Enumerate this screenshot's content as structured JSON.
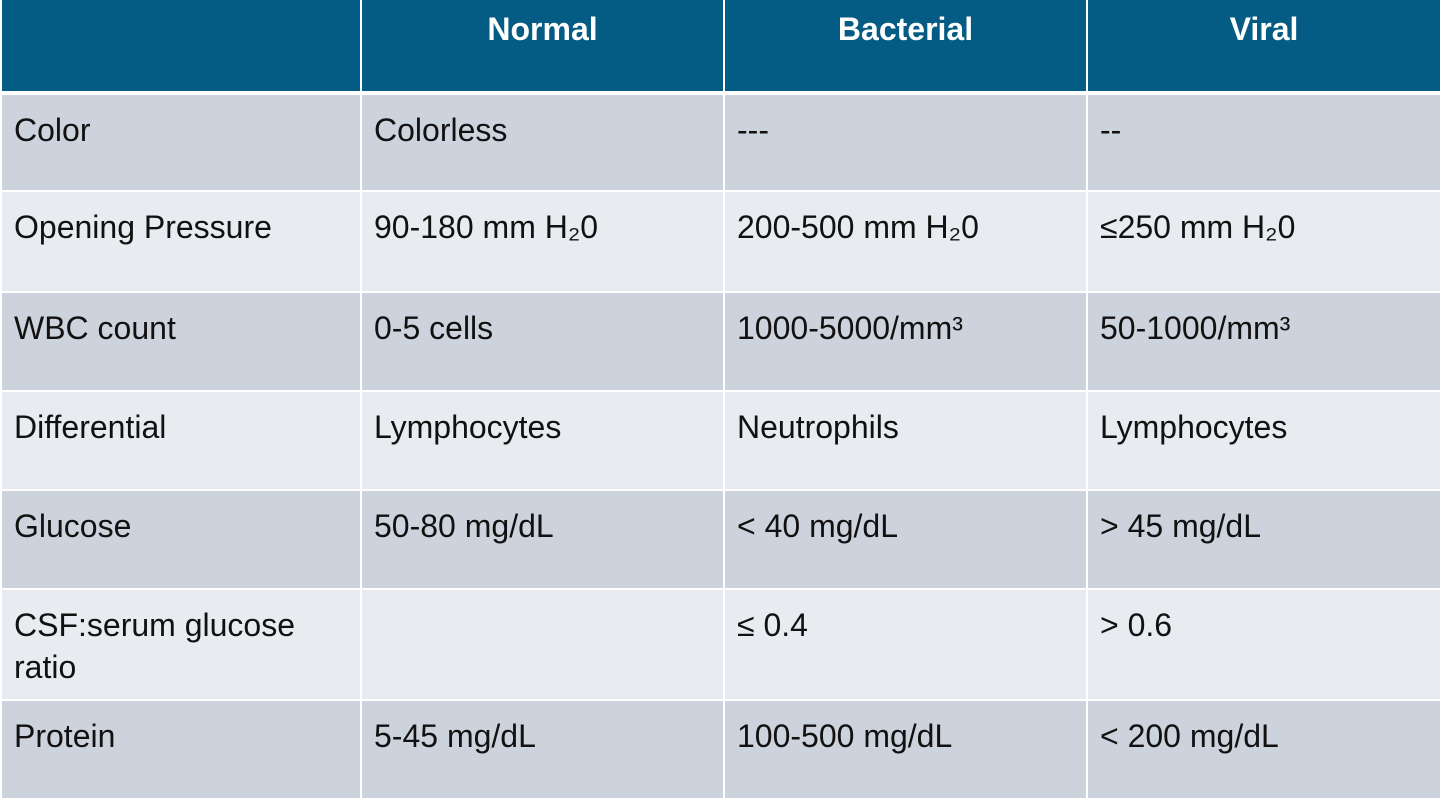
{
  "table": {
    "header": [
      "Normal",
      "Bacterial",
      "Viral"
    ],
    "rows": [
      {
        "label": "Color",
        "normal": "Colorless",
        "bacterial": "---",
        "viral": "--"
      },
      {
        "label": "Opening Pressure",
        "normal": "90-180 mm H₂0",
        "bacterial": "200-500 mm H₂0",
        "viral": "≤250 mm H₂0"
      },
      {
        "label": "WBC count",
        "normal": "0-5 cells",
        "bacterial": "1000-5000/mm³",
        "viral": "50-1000/mm³"
      },
      {
        "label": "Differential",
        "normal": "Lymphocytes",
        "bacterial": "Neutrophils",
        "viral": "Lymphocytes"
      },
      {
        "label": "Glucose",
        "normal": "50-80 mg/dL",
        "bacterial": "< 40 mg/dL",
        "viral": "> 45 mg/dL"
      },
      {
        "label": "CSF:serum glucose ratio",
        "bacterial": "≤ 0.4",
        "viral": "> 0.6"
      },
      {
        "label": "Protein",
        "normal": "5-45 mg/dL",
        "bacterial": "100-500 mg/dL",
        "viral": "< 200 mg/dL"
      }
    ]
  }
}
